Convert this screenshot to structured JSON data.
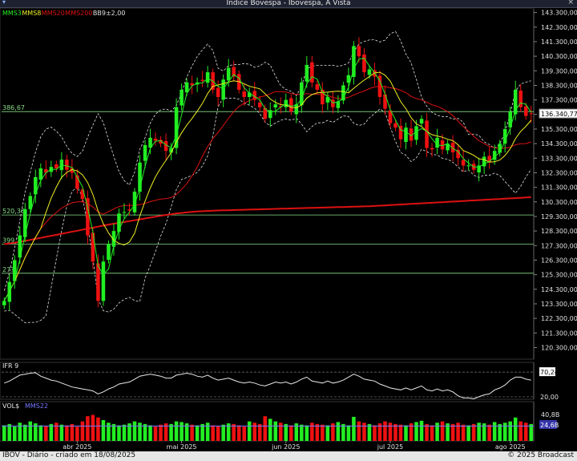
{
  "window": {
    "title": "Indice Bovespa - Ibovespa, A Vista",
    "close_glyph": "×",
    "menu_glyph": "▾"
  },
  "footer": {
    "left": "IBOV - Diário - criado em 18/08/2025",
    "right": "© 2025 Broadcast"
  },
  "colors": {
    "up": "#22ee22",
    "down": "#ee1111",
    "mms3": "#22ee22",
    "mms8": "#eeee22",
    "mms20": "#dd1111",
    "mms200": "#dd1111",
    "bb": "#e0e0e0",
    "hline": "#88dd88",
    "ifr": "#e8e8e8",
    "mms22": "#7777ff"
  },
  "chart_data": [
    {
      "type": "candlestick",
      "panel": "price",
      "legend": [
        {
          "name": "MMS3",
          "color": "#22ee22"
        },
        {
          "name": "MMS8",
          "color": "#eeee22"
        },
        {
          "name": "MMS20",
          "color": "#dd1111"
        },
        {
          "name": "MMS200",
          "color": "#dd1111"
        },
        {
          "name": "BB9±2,00",
          "color": "#e0e0e0"
        }
      ],
      "ylim": [
        119500,
        143500
      ],
      "y_ticks": [
        120300,
        121300,
        122300,
        123300,
        124300,
        125300,
        126300,
        127300,
        128300,
        129300,
        130300,
        131300,
        132300,
        133300,
        134300,
        135300,
        136300,
        137300,
        138300,
        139300,
        140300,
        141300,
        142300,
        143300
      ],
      "y_tick_labels": [
        "120.300,00",
        "121.300,00",
        "122.300,00",
        "123.300,00",
        "124.300,00",
        "125.300,00",
        "126.300,00",
        "127.300,00",
        "128.300,00",
        "129.300,00",
        "130.300,00",
        "131.300,00",
        "132.300,00",
        "133.300,00",
        "134.300,00",
        "135.300,00",
        "136.300,00",
        "137.300,00",
        "138.300,00",
        "139.300,00",
        "140.300,00",
        "141.300,00",
        "142.300,00",
        "143.300,00"
      ],
      "last_value_label": "136.340,77",
      "x_month_labels": [
        {
          "label": "abr 2025",
          "index": 14
        },
        {
          "label": "mai 2025",
          "index": 34
        },
        {
          "label": "jun 2025",
          "index": 54
        },
        {
          "label": "jul 2025",
          "index": 74
        },
        {
          "label": "ago 2025",
          "index": 97
        }
      ],
      "horizontal_lines": [
        {
          "value": 136500,
          "label": "386,67"
        },
        {
          "value": 129400,
          "label": "520,36"
        },
        {
          "value": 127400,
          "label": "399,?"
        },
        {
          "value": 125400,
          "label": "27?,"
        }
      ],
      "closes": [
        123500,
        124800,
        126300,
        128000,
        129800,
        130700,
        132000,
        132600,
        132300,
        132700,
        132600,
        133200,
        132500,
        132300,
        131200,
        130500,
        128000,
        126200,
        123500,
        126200,
        127400,
        128300,
        129500,
        129600,
        129700,
        131000,
        133000,
        134200,
        134700,
        134500,
        134300,
        133800,
        134000,
        136800,
        138000,
        138500,
        138300,
        138500,
        138600,
        139200,
        138000,
        137500,
        138700,
        139500,
        138900,
        138000,
        137500,
        137800,
        137300,
        136800,
        136000,
        136600,
        137000,
        136800,
        137300,
        136500,
        137000,
        138500,
        139700,
        138500,
        138000,
        137000,
        137500,
        136800,
        137200,
        138300,
        139000,
        141000,
        140300,
        139200,
        139400,
        138900,
        137500,
        136700,
        135700,
        135400,
        134600,
        135400,
        134500,
        135500,
        136000,
        134000,
        133900,
        134700,
        133900,
        134300,
        133700,
        133300,
        132800,
        132800,
        132500,
        132800,
        133400,
        133000,
        133800,
        134300,
        135300,
        136500,
        138000,
        136800,
        136200,
        136340
      ],
      "mms200": [
        127400,
        127450,
        127500,
        127560,
        127620,
        127690,
        127760,
        127830,
        127900,
        127970,
        128040,
        128110,
        128180,
        128250,
        128320,
        128390,
        128460,
        128530,
        128600,
        128670,
        128740,
        128800,
        128860,
        128920,
        128980,
        129040,
        129100,
        129160,
        129220,
        129280,
        129340,
        129400,
        129450,
        129500,
        129540,
        129580,
        129610,
        129640,
        129660,
        129680,
        129700,
        129710,
        129720,
        129730,
        129740,
        129750,
        129760,
        129770,
        129780,
        129790,
        129800,
        129810,
        129820,
        129830,
        129840,
        129850,
        129860,
        129870,
        129880,
        129890,
        129900,
        129910,
        129920,
        129930,
        129940,
        129950,
        129960,
        129970,
        129980,
        129990,
        130000,
        130020,
        130040,
        130060,
        130080,
        130100,
        130120,
        130140,
        130160,
        130180,
        130200,
        130220,
        130240,
        130260,
        130280,
        130300,
        130320,
        130340,
        130360,
        130380,
        130400,
        130420,
        130440,
        130460,
        130480,
        130500,
        130520,
        130540,
        130560,
        130580,
        130600,
        130620
      ]
    },
    {
      "type": "line",
      "panel": "ifr",
      "legend": [
        {
          "name": "IFR 9",
          "color": "#e8e8e8"
        }
      ],
      "ylim": [
        15,
        90
      ],
      "ref_lines": [
        20,
        70.24
      ],
      "tick_labels": [
        "70,24",
        "20,00"
      ],
      "values": [
        48,
        52,
        58,
        64,
        66,
        68,
        69,
        62,
        58,
        54,
        52,
        48,
        44,
        40,
        38,
        36,
        34,
        32,
        26,
        30,
        36,
        40,
        46,
        48,
        50,
        56,
        62,
        64,
        66,
        64,
        62,
        58,
        58,
        64,
        66,
        68,
        66,
        62,
        60,
        64,
        58,
        54,
        56,
        58,
        54,
        50,
        48,
        50,
        48,
        44,
        42,
        46,
        50,
        48,
        50,
        46,
        50,
        56,
        60,
        52,
        50,
        48,
        52,
        48,
        50,
        54,
        60,
        66,
        62,
        56,
        54,
        52,
        46,
        42,
        38,
        36,
        34,
        38,
        34,
        38,
        42,
        34,
        32,
        36,
        32,
        34,
        30,
        22,
        18,
        18,
        16,
        20,
        24,
        26,
        34,
        38,
        44,
        54,
        60,
        60,
        56,
        54
      ]
    },
    {
      "type": "bar",
      "panel": "volume",
      "legend": [
        {
          "name": "VOL$",
          "color": "#e8e8e8"
        },
        {
          "name": "MMS22",
          "color": "#7777ff"
        }
      ],
      "ylim": [
        0,
        48
      ],
      "tick_labels": [
        "40,8B",
        "24,6B"
      ],
      "values": [
        24,
        26,
        22,
        28,
        25,
        30,
        27,
        24,
        23,
        26,
        28,
        25,
        24,
        26,
        22,
        30,
        38,
        40,
        36,
        32,
        28,
        26,
        24,
        25,
        27,
        30,
        28,
        26,
        24,
        22,
        25,
        27,
        26,
        30,
        29,
        27,
        25,
        24,
        26,
        28,
        24,
        23,
        25,
        27,
        26,
        24,
        22,
        30,
        28,
        26,
        38,
        34,
        30,
        28,
        26,
        24,
        27,
        25,
        24,
        28,
        26,
        25,
        24,
        27,
        29,
        26,
        24,
        37,
        30,
        28,
        26,
        24,
        27,
        30,
        28,
        26,
        25,
        24,
        27,
        29,
        31,
        26,
        24,
        28,
        30,
        27,
        26,
        28,
        25,
        24,
        26,
        28,
        27,
        25,
        29,
        26,
        28,
        30,
        36,
        30,
        28,
        26
      ],
      "mms22_level": 23
    }
  ]
}
